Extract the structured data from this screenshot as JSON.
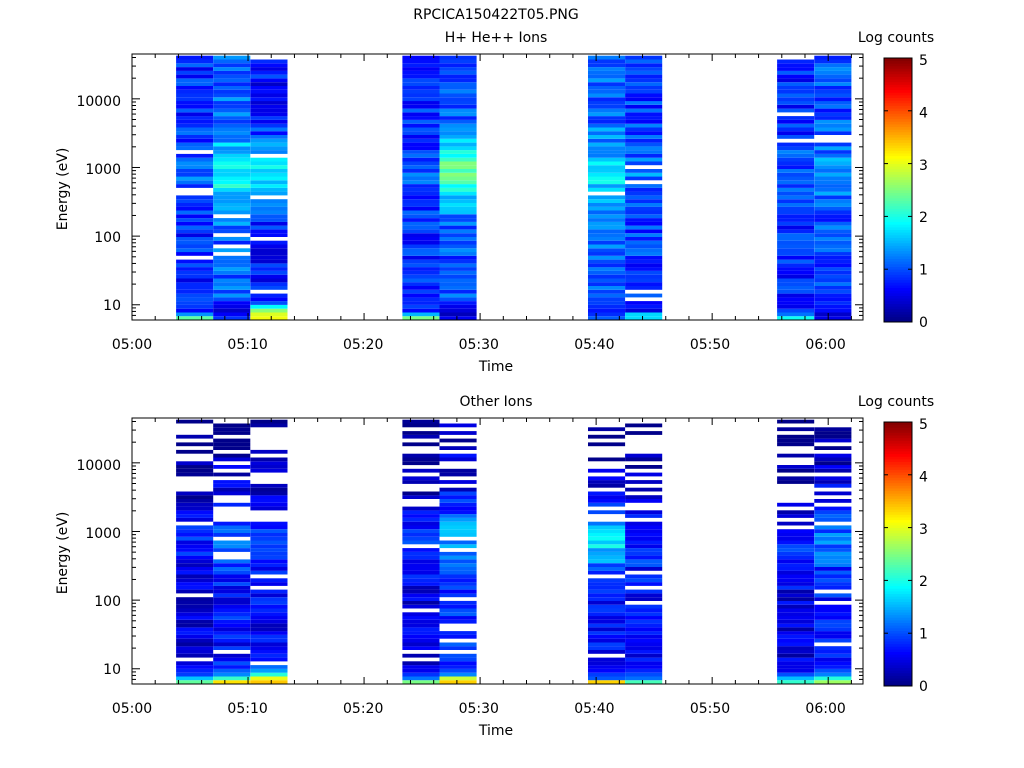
{
  "figure": {
    "title": "RPCICA150422T05.PNG"
  },
  "colors": {
    "colormap": "jet",
    "background": "#ffffff",
    "axes": "#000000"
  },
  "chart_data": [
    {
      "type": "heatmap",
      "title": "H+ He++ Ions",
      "xlabel": "Time",
      "ylabel": "Energy (eV)",
      "y_scale": "log",
      "ylim": [
        6,
        45000
      ],
      "xlim_minutes_from_0500": [
        0,
        63
      ],
      "x_ticks": [
        "05:00",
        "05:10",
        "05:20",
        "05:30",
        "05:40",
        "05:50",
        "06:00"
      ],
      "y_ticks": [
        "10",
        "100",
        "1000",
        "10000"
      ],
      "colorbar": {
        "label": "Log counts",
        "range": [
          0,
          5
        ],
        "ticks": [
          "0",
          "1",
          "2",
          "3",
          "4",
          "5"
        ]
      },
      "sweeps": [
        {
          "start": "05:03.8",
          "end": "05:07.0",
          "bottom_log_counts": [
            2.4,
            1.3,
            0.6,
            0.9,
            1.0
          ],
          "mid_log_counts": 0.8,
          "peak_log_counts": 1.1
        },
        {
          "start": "05:07.0",
          "end": "05:10.2",
          "bottom_log_counts": [
            0.8,
            0.6,
            0.4,
            0.5,
            0.7
          ],
          "mid_log_counts": 1.1,
          "peak_log_counts": 2.0
        },
        {
          "start": "05:10.2",
          "end": "05:13.4",
          "bottom_log_counts": [
            3.0,
            2.9,
            2.5,
            1.8,
            1.0
          ],
          "mid_log_counts": 0.7,
          "peak_log_counts": 1.8
        },
        {
          "start": "05:23.3",
          "end": "05:26.5",
          "bottom_log_counts": [
            2.4,
            1.5,
            0.7,
            1.0,
            0.8
          ],
          "mid_log_counts": 0.8,
          "peak_log_counts": 1.0
        },
        {
          "start": "05:26.5",
          "end": "05:29.7",
          "bottom_log_counts": [
            0.6,
            0.3,
            0.5,
            0.6,
            0.7
          ],
          "mid_log_counts": 1.0,
          "peak_log_counts": 2.3
        },
        {
          "start": "05:39.3",
          "end": "05:42.5",
          "bottom_log_counts": [
            1.0,
            0.9,
            0.8,
            0.9,
            0.9
          ],
          "mid_log_counts": 1.1,
          "peak_log_counts": 1.7
        },
        {
          "start": "05:42.5",
          "end": "05:45.7",
          "bottom_log_counts": [
            1.8,
            1.6,
            0.4,
            0.7,
            0.6
          ],
          "mid_log_counts": 0.9,
          "peak_log_counts": 1.2
        },
        {
          "start": "05:55.6",
          "end": "05:58.8",
          "bottom_log_counts": [
            1.9,
            1.1,
            0.9,
            0.5,
            0.7
          ],
          "mid_log_counts": 0.8,
          "peak_log_counts": 1.0
        },
        {
          "start": "05:58.8",
          "end": "06:02.0",
          "bottom_log_counts": [
            0.6,
            0.4,
            0.7,
            0.8,
            0.8
          ],
          "mid_log_counts": 1.0,
          "peak_log_counts": 1.3
        }
      ]
    },
    {
      "type": "heatmap",
      "title": "Other Ions",
      "xlabel": "Time",
      "ylabel": "Energy (eV)",
      "y_scale": "log",
      "ylim": [
        6,
        45000
      ],
      "xlim_minutes_from_0500": [
        0,
        63
      ],
      "x_ticks": [
        "05:00",
        "05:10",
        "05:20",
        "05:30",
        "05:40",
        "05:50",
        "06:00"
      ],
      "y_ticks": [
        "10",
        "100",
        "1000",
        "10000"
      ],
      "colorbar": {
        "label": "Log counts",
        "range": [
          0,
          5
        ],
        "ticks": [
          "0",
          "1",
          "2",
          "3",
          "4",
          "5"
        ]
      },
      "sweeps": [
        {
          "start": "05:03.8",
          "end": "05:07.0",
          "bottom_log_counts": [
            2.4,
            1.5,
            1.0,
            0.8,
            0.6
          ],
          "mid_log_counts": 0.5,
          "peak_log_counts": 0.8
        },
        {
          "start": "05:07.0",
          "end": "05:10.2",
          "bottom_log_counts": [
            3.2,
            2.1,
            1.3,
            1.0,
            0.8
          ],
          "mid_log_counts": 0.7,
          "peak_log_counts": 1.2
        },
        {
          "start": "05:10.2",
          "end": "05:13.4",
          "bottom_log_counts": [
            3.4,
            3.0,
            2.0,
            1.5,
            1.1
          ],
          "mid_log_counts": 0.6,
          "peak_log_counts": 1.0
        },
        {
          "start": "05:23.3",
          "end": "05:26.5",
          "bottom_log_counts": [
            2.5,
            1.3,
            0.9,
            0.6,
            0.5
          ],
          "mid_log_counts": 0.5,
          "peak_log_counts": 0.8
        },
        {
          "start": "05:26.5",
          "end": "05:29.7",
          "bottom_log_counts": [
            3.3,
            2.8,
            1.2,
            1.0,
            0.8
          ],
          "mid_log_counts": 0.8,
          "peak_log_counts": 1.5
        },
        {
          "start": "05:39.3",
          "end": "05:42.5",
          "bottom_log_counts": [
            3.3,
            1.1,
            0.9,
            0.7,
            0.6
          ],
          "mid_log_counts": 0.6,
          "peak_log_counts": 1.8
        },
        {
          "start": "05:42.5",
          "end": "05:45.7",
          "bottom_log_counts": [
            2.2,
            1.2,
            0.9,
            0.8,
            0.6
          ],
          "mid_log_counts": 0.6,
          "peak_log_counts": 0.9
        },
        {
          "start": "05:55.6",
          "end": "05:58.8",
          "bottom_log_counts": [
            2.2,
            1.5,
            1.0,
            0.6,
            0.6
          ],
          "mid_log_counts": 0.5,
          "peak_log_counts": 0.8
        },
        {
          "start": "05:58.8",
          "end": "06:02.0",
          "bottom_log_counts": [
            2.7,
            2.0,
            1.3,
            1.0,
            0.8
          ],
          "mid_log_counts": 0.7,
          "peak_log_counts": 1.2
        }
      ]
    }
  ]
}
